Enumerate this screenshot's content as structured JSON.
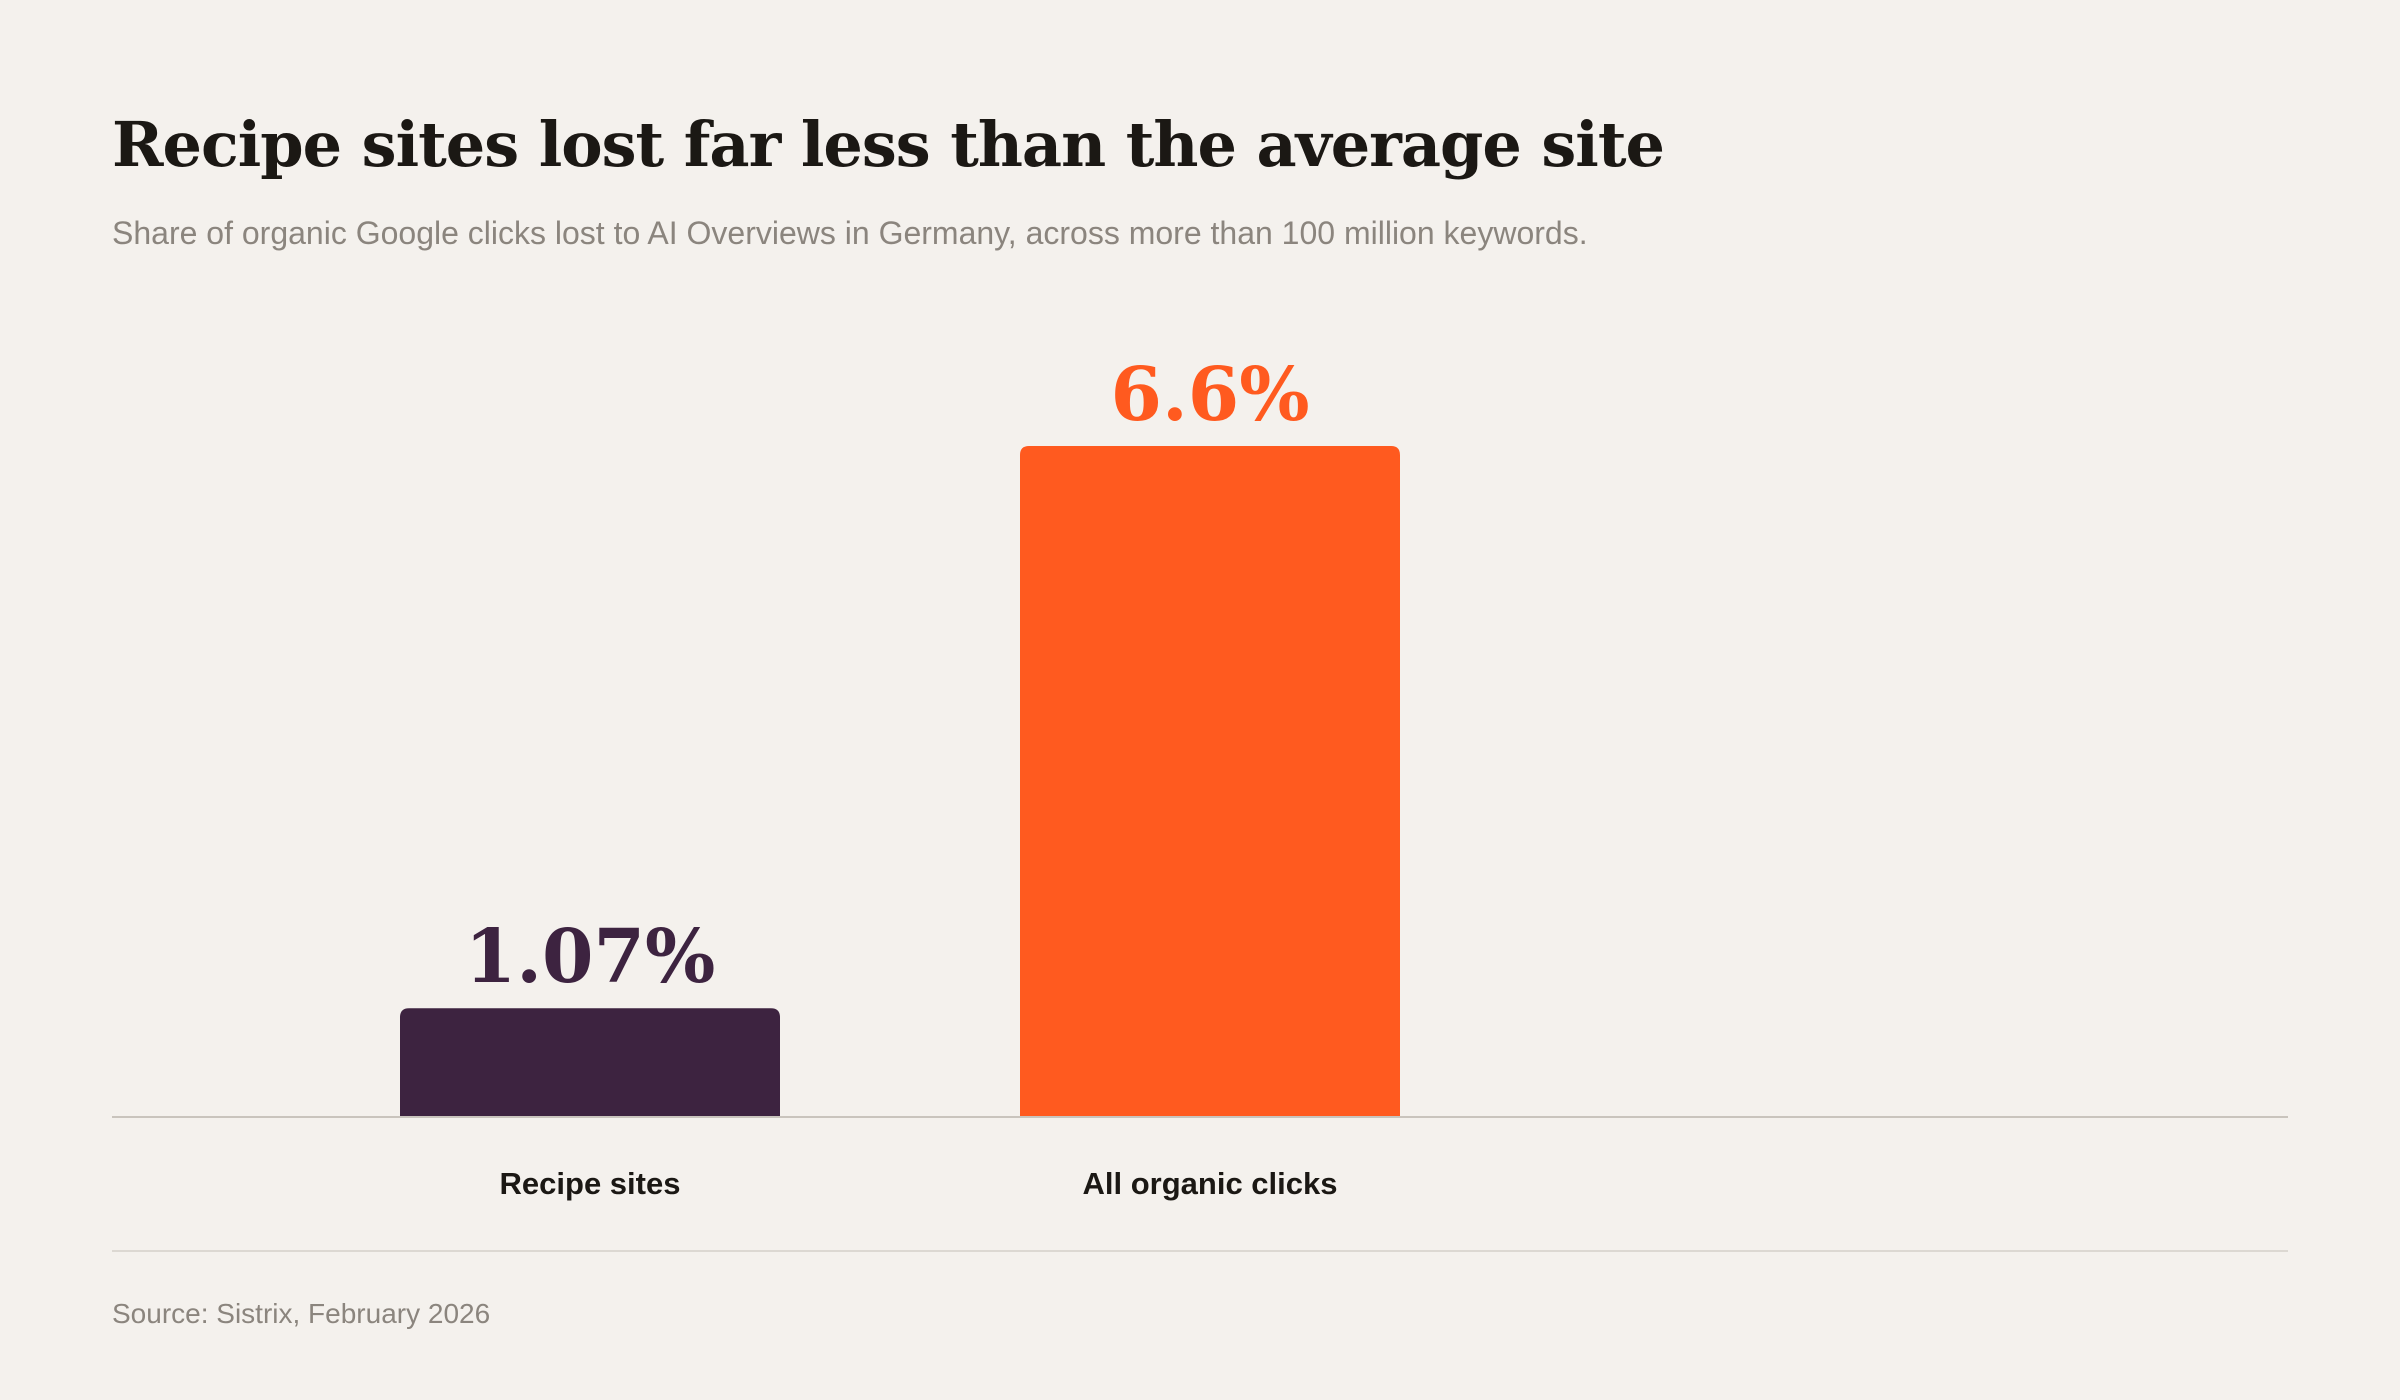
{
  "header": {
    "title": "Recipe sites lost far less than the average site",
    "subtitle": "Share of organic Google clicks lost to AI Overviews in Germany, across more than 100 million keywords."
  },
  "chart_data": {
    "type": "bar",
    "title": "Recipe sites lost far less than the average site",
    "subtitle": "Share of organic Google clicks lost to AI Overviews in Germany, across more than 100 million keywords.",
    "categories": [
      "Recipe sites",
      "All organic clicks"
    ],
    "values": [
      1.07,
      6.6
    ],
    "value_labels": [
      "1.07%",
      "6.6%"
    ],
    "bar_colors": [
      "#3d2340",
      "#ff5a1f"
    ],
    "xlabel": "",
    "ylabel": "",
    "ylim": [
      0,
      6.6
    ],
    "grid": false,
    "legend": "none"
  },
  "footer": {
    "source": "Source: Sistrix, February 2026"
  }
}
